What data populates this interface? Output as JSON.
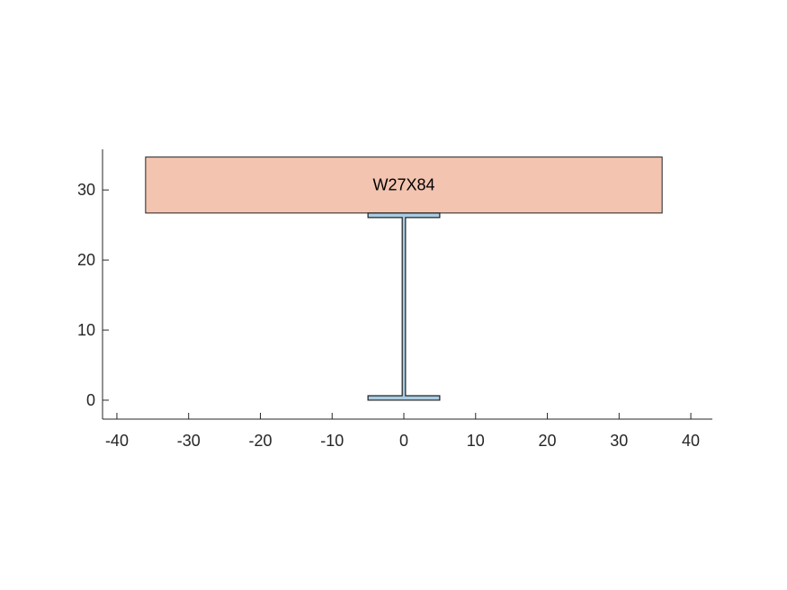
{
  "figure": {
    "section_label": "W27X84",
    "colors": {
      "slab_fill": "#f3c4b0",
      "beam_fill": "#a9cce3",
      "outline": "#222222",
      "axis": "#262626"
    }
  },
  "axes": {
    "xlim": [
      -42,
      43
    ],
    "ylim": [
      -2.7,
      35.8
    ],
    "x_ticks": [
      -40,
      -30,
      -20,
      -10,
      0,
      10,
      20,
      30,
      40
    ],
    "x_tick_labels": [
      "-40",
      "-30",
      "-20",
      "-10",
      "0",
      "10",
      "20",
      "30",
      "40"
    ],
    "y_ticks": [
      0,
      10,
      20,
      30
    ],
    "y_tick_labels": [
      "0",
      "10",
      "20",
      "30"
    ]
  },
  "geometry": {
    "slab": {
      "x": [
        -36,
        36
      ],
      "y": [
        26.7,
        34.7
      ]
    },
    "beam": {
      "depth": 26.7,
      "flange_width": 10.0,
      "flange_thickness": 0.64,
      "web_thickness": 0.46
    }
  }
}
